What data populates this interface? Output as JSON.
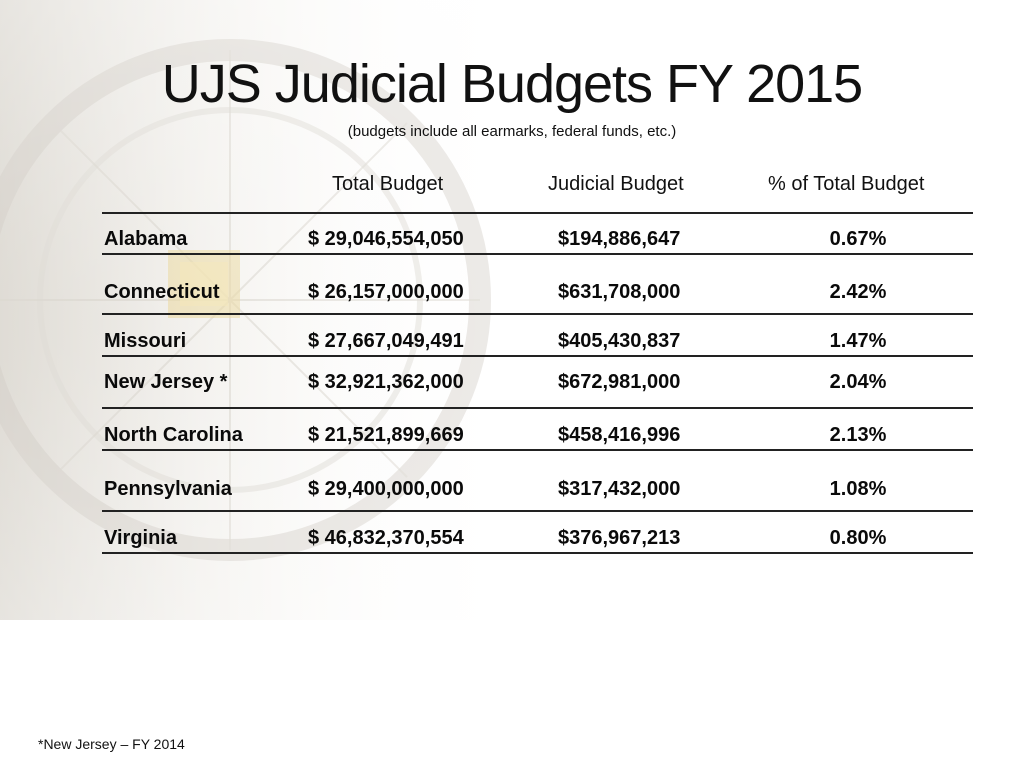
{
  "slide": {
    "title": "UJS Judicial Budgets FY 2015",
    "subtitle": "(budgets include all earmarks, federal funds, etc.)",
    "footnote": "*New Jersey – FY 2014"
  },
  "table": {
    "headers": {
      "state": "",
      "total_budget": "Total Budget",
      "judicial_budget": "Judicial Budget",
      "pct_total": "% of Total Budget"
    },
    "rows": [
      {
        "state": "Alabama",
        "total_budget": "$ 29,046,554,050",
        "judicial_budget": "$194,886,647",
        "pct_total": "0.67%"
      },
      {
        "state": "Connecticut",
        "total_budget": "$ 26,157,000,000",
        "judicial_budget": "$631,708,000",
        "pct_total": "2.42%"
      },
      {
        "state": "Missouri",
        "total_budget": "$ 27,667,049,491",
        "judicial_budget": "$405,430,837",
        "pct_total": "1.47%"
      },
      {
        "state": "New Jersey *",
        "total_budget": "$ 32,921,362,000",
        "judicial_budget": "$672,981,000",
        "pct_total": "2.04%"
      },
      {
        "state": "North Carolina",
        "total_budget": "$ 21,521,899,669",
        "judicial_budget": "$458,416,996",
        "pct_total": "2.13%"
      },
      {
        "state": "Pennsylvania",
        "total_budget": "$ 29,400,000,000",
        "judicial_budget": "$317,432,000",
        "pct_total": "1.08%"
      },
      {
        "state": "Virginia",
        "total_budget": "$ 46,832,370,554",
        "judicial_budget": "$376,967,213",
        "pct_total": "0.80%"
      }
    ]
  }
}
